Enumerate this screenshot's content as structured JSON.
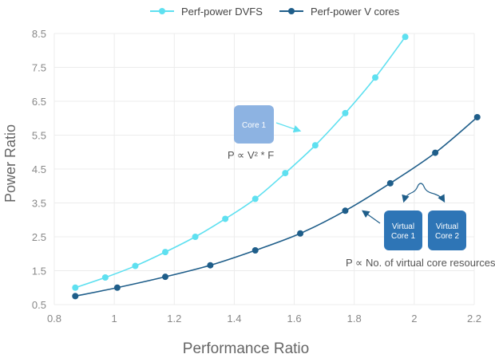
{
  "chart_data": {
    "type": "line",
    "title": "",
    "xlabel": "Performance Ratio",
    "ylabel": "Power Ratio",
    "xlim": [
      0.8,
      2.2
    ],
    "ylim": [
      0.5,
      8.5
    ],
    "x_ticks": [
      "0.8",
      "1",
      "1.2",
      "1.4",
      "1.6",
      "1.8",
      "2",
      "2.2"
    ],
    "y_ticks": [
      "0.5",
      "1.5",
      "2.5",
      "3.5",
      "4.5",
      "5.5",
      "6.5",
      "7.5",
      "8.5"
    ],
    "x_tick_values": [
      0.8,
      1.0,
      1.2,
      1.4,
      1.6,
      1.8,
      2.0,
      2.2
    ],
    "y_tick_values": [
      0.5,
      1.5,
      2.5,
      3.5,
      4.5,
      5.5,
      6.5,
      7.5,
      8.5
    ],
    "grid": true,
    "legend_position": "top",
    "series": [
      {
        "name": "Perf-power DVFS",
        "color": "#5ee0f0",
        "points": [
          [
            0.87,
            1.0
          ],
          [
            0.97,
            1.3
          ],
          [
            1.07,
            1.64
          ],
          [
            1.17,
            2.05
          ],
          [
            1.27,
            2.5
          ],
          [
            1.37,
            3.03
          ],
          [
            1.47,
            3.62
          ],
          [
            1.57,
            4.38
          ],
          [
            1.67,
            5.2
          ],
          [
            1.77,
            6.15
          ],
          [
            1.87,
            7.2
          ],
          [
            1.97,
            8.4
          ]
        ]
      },
      {
        "name": "Perf-power V cores",
        "color": "#1f5e8a",
        "points": [
          [
            0.87,
            0.75
          ],
          [
            1.01,
            1.0
          ],
          [
            1.17,
            1.32
          ],
          [
            1.32,
            1.66
          ],
          [
            1.47,
            2.1
          ],
          [
            1.62,
            2.6
          ],
          [
            1.77,
            3.27
          ],
          [
            1.92,
            4.08
          ],
          [
            2.07,
            4.98
          ],
          [
            2.21,
            6.03
          ]
        ]
      }
    ],
    "annotations": {
      "core_box": {
        "label": "Core 1",
        "color": "#8db3e2"
      },
      "formula_dvfs": "P ∝ V² * F",
      "virtual_core_1": {
        "line1": "Virtual",
        "line2": "Core 1",
        "color": "#2e75b6"
      },
      "virtual_core_2": {
        "line1": "Virtual",
        "line2": "Core 2",
        "color": "#2e75b6"
      },
      "formula_vcores": "P ∝ No. of virtual core resources"
    }
  }
}
